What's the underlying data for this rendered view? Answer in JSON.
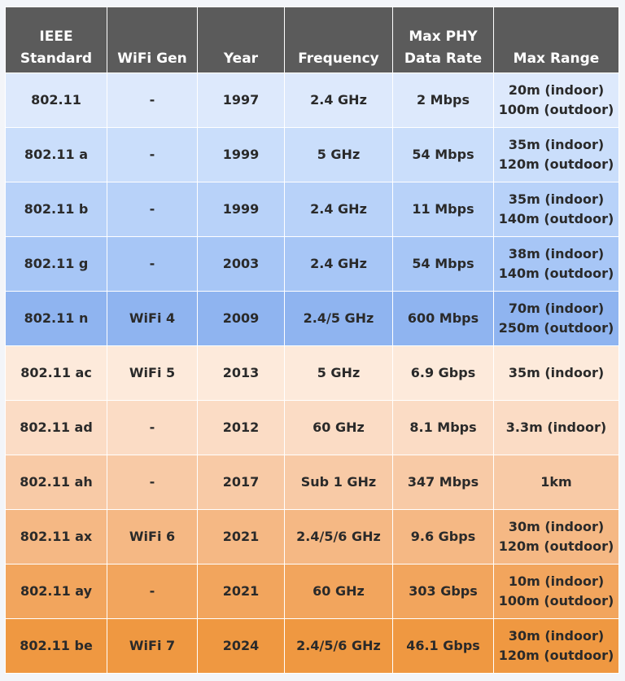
{
  "table": {
    "header": [
      "IEEE\nStandard",
      "WiFi Gen",
      "Year",
      "Frequency",
      "Max PHY\nData Rate",
      "Max Range"
    ],
    "rows": [
      [
        "802.11",
        "-",
        "1997",
        "2.4 GHz",
        "2 Mbps",
        "20m (indoor)\n100m (outdoor)"
      ],
      [
        "802.11 a",
        "-",
        "1999",
        "5 GHz",
        "54 Mbps",
        "35m (indoor)\n120m (outdoor)"
      ],
      [
        "802.11 b",
        "-",
        "1999",
        "2.4 GHz",
        "11 Mbps",
        "35m (indoor)\n140m (outdoor)"
      ],
      [
        "802.11 g",
        "-",
        "2003",
        "2.4 GHz",
        "54 Mbps",
        "38m (indoor)\n140m (outdoor)"
      ],
      [
        "802.11 n",
        "WiFi 4",
        "2009",
        "2.4/5 GHz",
        "600 Mbps",
        "70m (indoor)\n250m (outdoor)"
      ],
      [
        "802.11 ac",
        "WiFi 5",
        "2013",
        "5 GHz",
        "6.9 Gbps",
        "35m (indoor)"
      ],
      [
        "802.11 ad",
        "-",
        "2012",
        "60 GHz",
        "8.1 Mbps",
        "3.3m (indoor)"
      ],
      [
        "802.11 ah",
        "-",
        "2017",
        "Sub 1 GHz",
        "347 Mbps",
        "1km"
      ],
      [
        "802.11 ax",
        "WiFi 6",
        "2021",
        "2.4/5/6 GHz",
        "9.6 Gbps",
        "30m (indoor)\n120m (outdoor)"
      ],
      [
        "802.11 ay",
        "-",
        "2021",
        "60 GHz",
        "303 Gbps",
        "10m (indoor)\n100m (outdoor)"
      ],
      [
        "802.11 be",
        "WiFi 7",
        "2024",
        "2.4/5/6 GHz",
        "46.1 Gbps",
        "30m (indoor)\n120m (outdoor)"
      ]
    ]
  }
}
